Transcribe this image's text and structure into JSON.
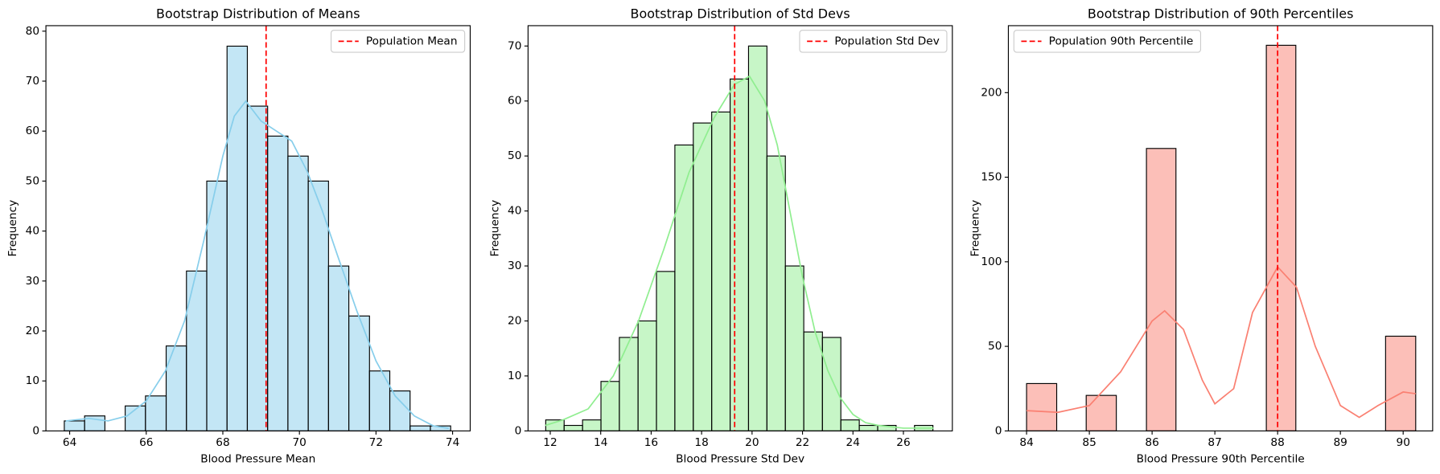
{
  "chart_data": [
    {
      "type": "histogram",
      "title": "Bootstrap Distribution of Means",
      "xlabel": "Blood Pressure Mean",
      "ylabel": "Frequency",
      "bins": [
        63.86,
        64.39,
        64.92,
        65.45,
        65.98,
        66.52,
        67.05,
        67.58,
        68.11,
        68.64,
        69.17,
        69.7,
        70.23,
        70.76,
        71.29,
        71.83,
        72.36,
        72.89,
        73.42,
        73.95
      ],
      "values": [
        2,
        3,
        0,
        5,
        7,
        17,
        32,
        50,
        77,
        65,
        59,
        55,
        50,
        33,
        23,
        12,
        8,
        1,
        1
      ],
      "color": "#87ceeb",
      "kde": {
        "x": [
          63.9,
          64.5,
          65,
          65.5,
          66,
          66.5,
          67,
          67.5,
          68,
          68.3,
          68.6,
          69,
          69.4,
          69.8,
          70.2,
          70.6,
          71,
          71.5,
          72,
          72.5,
          73,
          73.5,
          73.9
        ],
        "y": [
          2,
          2.5,
          2,
          3,
          6,
          12,
          22,
          38,
          55,
          63,
          66,
          62,
          60,
          58,
          52,
          44,
          35,
          24,
          14,
          7,
          3,
          1,
          0.5
        ]
      },
      "vline": {
        "value": 69.13,
        "label": "Population Mean",
        "color": "#ff0000"
      },
      "legend": "upper-right",
      "xlim": [
        63.38,
        74.46
      ],
      "ylim": [
        0,
        81.1
      ],
      "xticks": [
        64,
        66,
        68,
        70,
        72,
        74
      ],
      "yticks": [
        0,
        10,
        20,
        30,
        40,
        50,
        60,
        70,
        80
      ]
    },
    {
      "type": "histogram",
      "title": "Bootstrap Distribution of Std Devs",
      "xlabel": "Blood Pressure Std Dev",
      "ylabel": "Frequency",
      "bins": [
        11.82,
        12.55,
        13.28,
        14.01,
        14.74,
        15.48,
        16.21,
        16.94,
        17.67,
        18.4,
        19.13,
        19.86,
        20.59,
        21.32,
        22.05,
        22.79,
        23.52,
        24.25,
        24.98,
        25.71,
        26.44,
        27.17
      ],
      "values": [
        2,
        1,
        2,
        9,
        17,
        20,
        29,
        52,
        56,
        58,
        64,
        70,
        50,
        30,
        18,
        17,
        2,
        1,
        1,
        0,
        1
      ],
      "color": "#90ee90",
      "kde": {
        "x": [
          11.8,
          12.5,
          13.5,
          14.5,
          15.5,
          16.5,
          17.5,
          18.5,
          19.3,
          19.9,
          20.5,
          21,
          21.5,
          22,
          22.5,
          23,
          23.5,
          24,
          24.5,
          25,
          26,
          27.2
        ],
        "y": [
          1,
          2,
          4,
          10,
          20,
          33,
          47,
          57,
          63,
          64.5,
          60,
          52,
          40,
          28,
          18,
          11,
          6,
          3,
          1.5,
          1,
          0.5,
          0.5
        ]
      },
      "vline": {
        "value": 19.31,
        "label": "Population Std Dev",
        "color": "#ff0000"
      },
      "legend": "upper-right",
      "xlim": [
        11.12,
        27.94
      ],
      "ylim": [
        0,
        73.7
      ],
      "xticks": [
        12,
        14,
        16,
        18,
        20,
        22,
        24,
        26
      ],
      "yticks": [
        0,
        10,
        20,
        30,
        40,
        50,
        60,
        70
      ]
    },
    {
      "type": "histogram",
      "title": "Bootstrap Distribution of 90th Percentiles",
      "xlabel": "Blood Pressure 90th Percentile",
      "ylabel": "Frequency",
      "bins": [
        84,
        84.48,
        84.95,
        85.43,
        85.91,
        86.38,
        86.86,
        87.34,
        87.82,
        88.29,
        88.77,
        89.25,
        89.72,
        90.2
      ],
      "values": [
        28,
        0,
        21,
        0,
        167,
        0,
        0,
        0,
        228,
        0,
        0,
        0,
        56
      ],
      "color": "#fa8072",
      "kde": {
        "x": [
          84,
          84.5,
          85,
          85.5,
          86,
          86.2,
          86.5,
          86.8,
          87,
          87.3,
          87.6,
          88,
          88.3,
          88.6,
          89,
          89.3,
          89.6,
          90,
          90.2
        ],
        "y": [
          12,
          11,
          15,
          35,
          65,
          71,
          60,
          30,
          16,
          25,
          70,
          97,
          85,
          50,
          15,
          8,
          15,
          23,
          22
        ]
      },
      "vline": {
        "value": 88,
        "label": "Population 90th Percentile",
        "color": "#ff0000"
      },
      "legend": "upper-left",
      "xlim": [
        83.71,
        90.47
      ],
      "ylim": [
        0,
        239.6
      ],
      "xticks": [
        84,
        85,
        86,
        87,
        88,
        89,
        90
      ],
      "yticks": [
        0,
        50,
        100,
        150,
        200
      ]
    }
  ]
}
